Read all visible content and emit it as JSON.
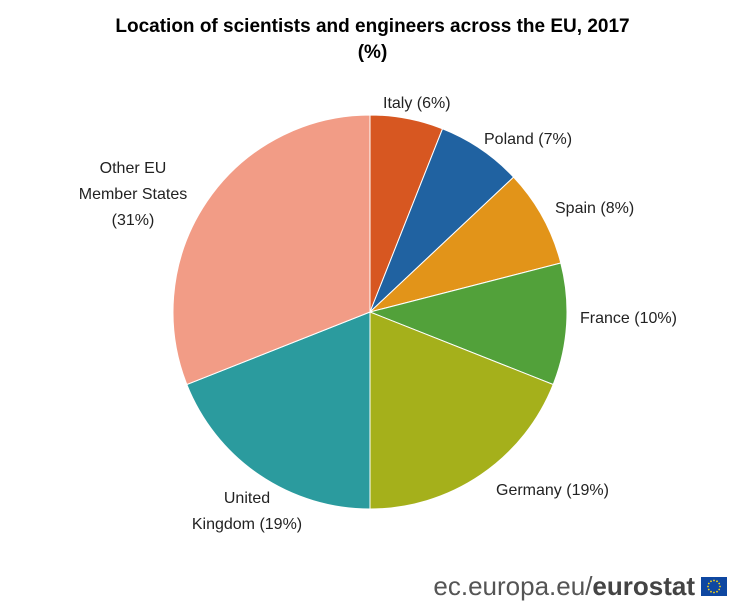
{
  "chart_data": {
    "type": "pie",
    "title": "Location of scientists and engineers across the EU, 2017",
    "subtitle": "(%)",
    "slices": [
      {
        "label": [
          "Italy  (6%)"
        ],
        "value": 6,
        "color": "#d75721"
      },
      {
        "label": [
          "Poland (7%)"
        ],
        "value": 7,
        "color": "#2062a1"
      },
      {
        "label": [
          "Spain (8%)"
        ],
        "value": 8,
        "color": "#e29419"
      },
      {
        "label": [
          "France (10%)"
        ],
        "value": 10,
        "color": "#52a13a"
      },
      {
        "label": [
          "Germany (19%)"
        ],
        "value": 19,
        "color": "#a5b01b"
      },
      {
        "label": [
          "United",
          "Kingdom (19%)"
        ],
        "value": 19,
        "color": "#2b9b9e"
      },
      {
        "label": [
          "Other EU",
          "Member States",
          "(31%)"
        ],
        "value": 31,
        "color": "#f29c86"
      }
    ]
  },
  "footer": {
    "site": "ec.europa.eu/",
    "brand": "eurostat",
    "flag_color": "#0e47a1",
    "star_color": "#f7d417"
  }
}
